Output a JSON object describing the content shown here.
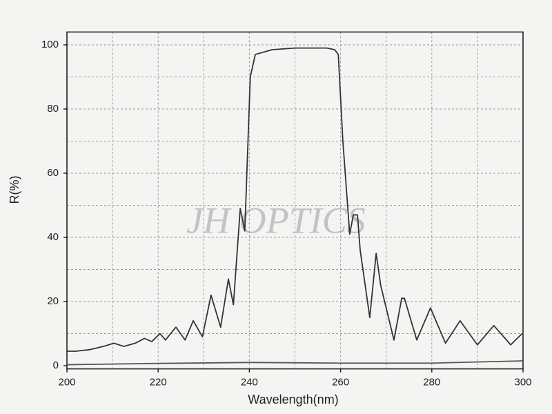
{
  "chart_data": {
    "type": "line",
    "xlabel": "Wavelength(nm)",
    "ylabel": "R(%)",
    "annotation": "JH OPTICS",
    "xlim": [
      200,
      300
    ],
    "xticks": [
      200,
      220,
      240,
      260,
      280,
      300
    ],
    "ylim": [
      -1,
      104
    ],
    "yticks": [
      0,
      20,
      40,
      60,
      80,
      100
    ],
    "xgrid": [
      210,
      220,
      230,
      240,
      250,
      260,
      270,
      280,
      290
    ],
    "ygrid": [
      10,
      20,
      30,
      40,
      50,
      60,
      70,
      80,
      90,
      100
    ],
    "grid": true,
    "series": [
      {
        "color": "#333333",
        "x": [
          200,
          202,
          205,
          208,
          210.3,
          212.5,
          215,
          217,
          218.6,
          220.4,
          221.6,
          223.9,
          225.9,
          227.7,
          229.7,
          231.6,
          233.7,
          235.4,
          236.5,
          238,
          239,
          240.2,
          241.3,
          245,
          250,
          253.4,
          257,
          258.7,
          259.5,
          260.5,
          262,
          262.8,
          263.7,
          264.3,
          266.4,
          267.8,
          268.8,
          271.7,
          273.4,
          274,
          276.7,
          279.7,
          283,
          286.2,
          290,
          293.6,
          297.3,
          299.8
        ],
        "values": [
          4.5,
          4.5,
          5,
          6,
          7,
          6,
          7,
          8.5,
          7.5,
          10,
          8,
          12,
          8,
          14,
          9,
          22,
          12,
          27,
          19,
          49,
          42,
          90,
          97,
          98.5,
          99,
          99,
          99,
          98.5,
          97,
          70,
          41,
          47,
          47,
          36,
          15,
          35,
          25,
          8,
          21,
          21,
          8,
          18,
          7,
          14,
          6.5,
          12.5,
          6.5,
          10
        ]
      },
      {
        "color": "#555555",
        "x": [
          200,
          220,
          240,
          260,
          280,
          300
        ],
        "values": [
          0.3,
          0.7,
          1,
          0.8,
          0.8,
          1.5
        ]
      }
    ]
  }
}
